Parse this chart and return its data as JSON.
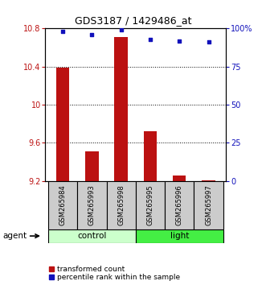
{
  "title": "GDS3187 / 1429486_at",
  "samples": [
    "GSM265984",
    "GSM265993",
    "GSM265998",
    "GSM265995",
    "GSM265996",
    "GSM265997"
  ],
  "bar_values": [
    10.39,
    9.51,
    10.71,
    9.72,
    9.26,
    9.21
  ],
  "percentile_values": [
    98,
    96,
    99,
    93,
    92,
    91
  ],
  "ylim_left": [
    9.2,
    10.8
  ],
  "ylim_right": [
    0,
    100
  ],
  "yticks_left": [
    9.2,
    9.6,
    10.0,
    10.4,
    10.8
  ],
  "yticks_right": [
    0,
    25,
    50,
    75,
    100
  ],
  "ytick_labels_left": [
    "9.2",
    "9.6",
    "10",
    "10.4",
    "10.8"
  ],
  "ytick_labels_right": [
    "0",
    "25",
    "50",
    "75",
    "100%"
  ],
  "bar_color": "#bb1111",
  "dot_color": "#1111bb",
  "bar_baseline": 9.2,
  "control_color": "#ccffcc",
  "light_color": "#44ee44",
  "bar_width": 0.45,
  "sample_box_color": "#cccccc",
  "legend_bar_label": "transformed count",
  "legend_dot_label": "percentile rank within the sample",
  "agent_label": "agent",
  "title_fontsize": 9,
  "tick_fontsize": 7,
  "sample_fontsize": 6,
  "group_fontsize": 7.5,
  "legend_fontsize": 6.5
}
